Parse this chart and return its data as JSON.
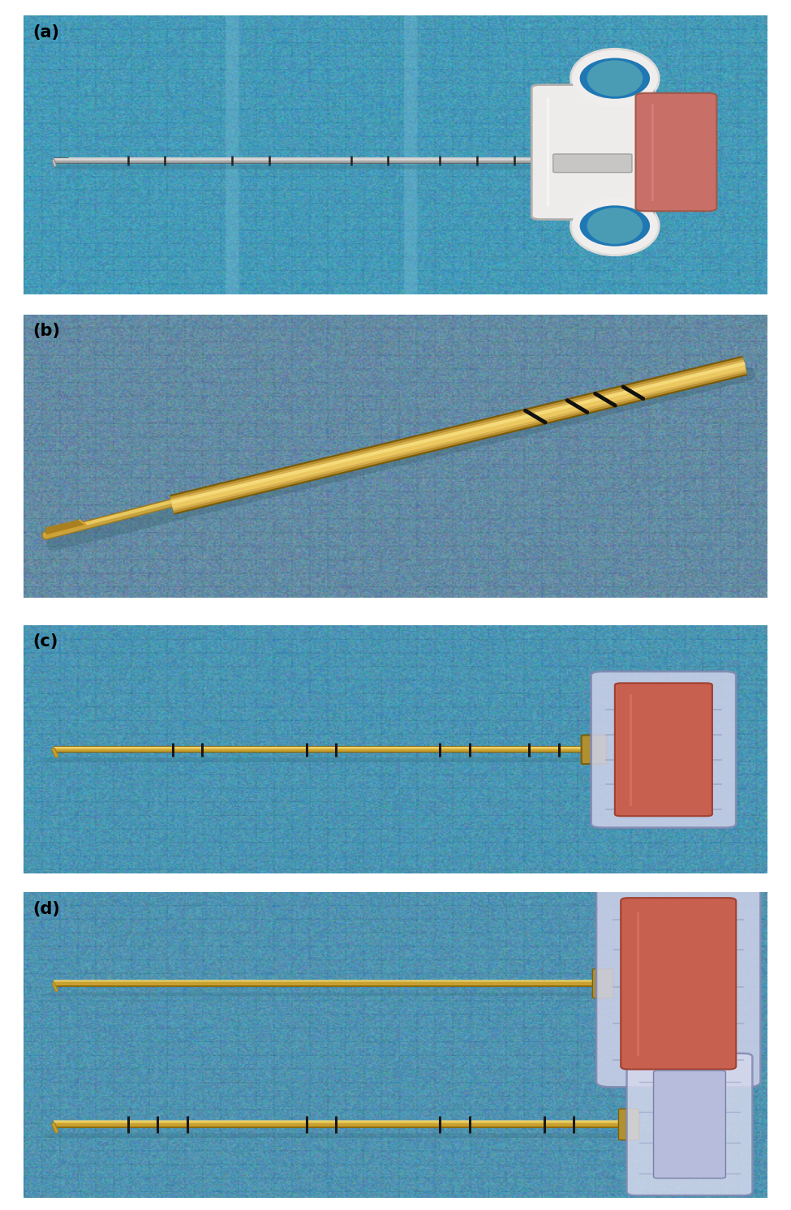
{
  "figure_width": 9.75,
  "figure_height": 14.92,
  "dpi": 100,
  "bg": "#ffffff",
  "label_fs": 15,
  "labels": [
    "(a)",
    "(b)",
    "(c)",
    "(d)"
  ],
  "panel_a_bg": [
    70,
    155,
    185
  ],
  "panel_b_bg": [
    100,
    140,
    165
  ],
  "panel_c_bg": [
    75,
    150,
    180
  ],
  "panel_d_bg": [
    80,
    148,
    178
  ],
  "needle_silver": "#b8b8b8",
  "needle_gold_dark": "#8a6a10",
  "needle_gold_mid": "#c8a030",
  "needle_gold_light": "#e8c858",
  "needle_gold_hi": "#f5e080",
  "black_ring": "#1a1a1a",
  "handle_white": "#f0eeea",
  "handle_pink": "#cc7060",
  "crystal": "#d8ddf0",
  "crystal_edge": "#9098b8"
}
